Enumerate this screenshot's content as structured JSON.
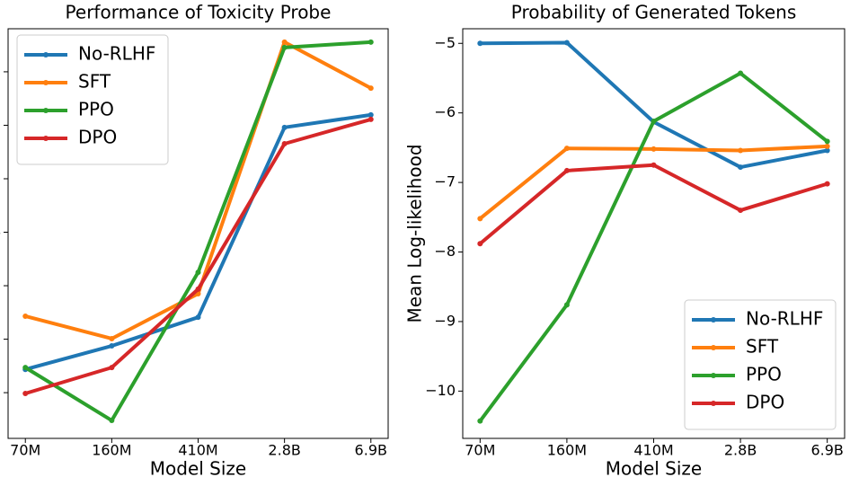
{
  "chart_data": [
    {
      "type": "line",
      "title": "Performance of Toxicity Probe",
      "xlabel": "Model Size",
      "categories": [
        "70M",
        "160M",
        "410M",
        "2.8B",
        "6.9B"
      ],
      "series": [
        {
          "name": "No-RLHF",
          "color": "#1f77b4",
          "values": [
            58.87,
            59.75,
            60.82,
            67.92,
            68.39
          ]
        },
        {
          "name": "SFT",
          "color": "#ff7f0e",
          "values": [
            60.86,
            60.02,
            61.7,
            71.11,
            69.39
          ]
        },
        {
          "name": "PPO",
          "color": "#2ca02c",
          "values": [
            58.94,
            56.96,
            62.5,
            70.91,
            71.11
          ]
        },
        {
          "name": "DPO",
          "color": "#d62728",
          "values": [
            57.97,
            58.94,
            61.87,
            67.31,
            68.22
          ]
        }
      ],
      "ylim": [
        56.29,
        71.61
      ],
      "yticks": [
        58,
        60,
        62,
        64,
        66,
        68,
        70
      ],
      "legend": "upper left"
    },
    {
      "type": "line",
      "title": "Probability of Generated Tokens",
      "xlabel": "Model Size",
      "ylabel": "Mean Log-likelihood",
      "categories": [
        "70M",
        "160M",
        "410M",
        "2.8B",
        "6.9B"
      ],
      "series": [
        {
          "name": "No-RLHF",
          "color": "#1f77b4",
          "values": [
            -5.0,
            -4.99,
            -6.13,
            -6.78,
            -6.54
          ]
        },
        {
          "name": "SFT",
          "color": "#ff7f0e",
          "values": [
            -7.52,
            -6.51,
            -6.52,
            -6.54,
            -6.48
          ]
        },
        {
          "name": "PPO",
          "color": "#2ca02c",
          "values": [
            -10.43,
            -8.76,
            -6.12,
            -5.43,
            -6.41
          ]
        },
        {
          "name": "DPO",
          "color": "#d62728",
          "values": [
            -7.88,
            -6.83,
            -6.75,
            -7.4,
            -7.02
          ]
        }
      ],
      "ylim": [
        -10.68,
        -4.79
      ],
      "yticks": [
        {
          "value": -10,
          "label": "−10"
        },
        {
          "value": -9,
          "label": "−9"
        },
        {
          "value": -8,
          "label": "−8"
        },
        {
          "value": -7,
          "label": "−7"
        },
        {
          "value": -6,
          "label": "−6"
        },
        {
          "value": -5,
          "label": "−5"
        }
      ],
      "legend": "lower right"
    }
  ]
}
